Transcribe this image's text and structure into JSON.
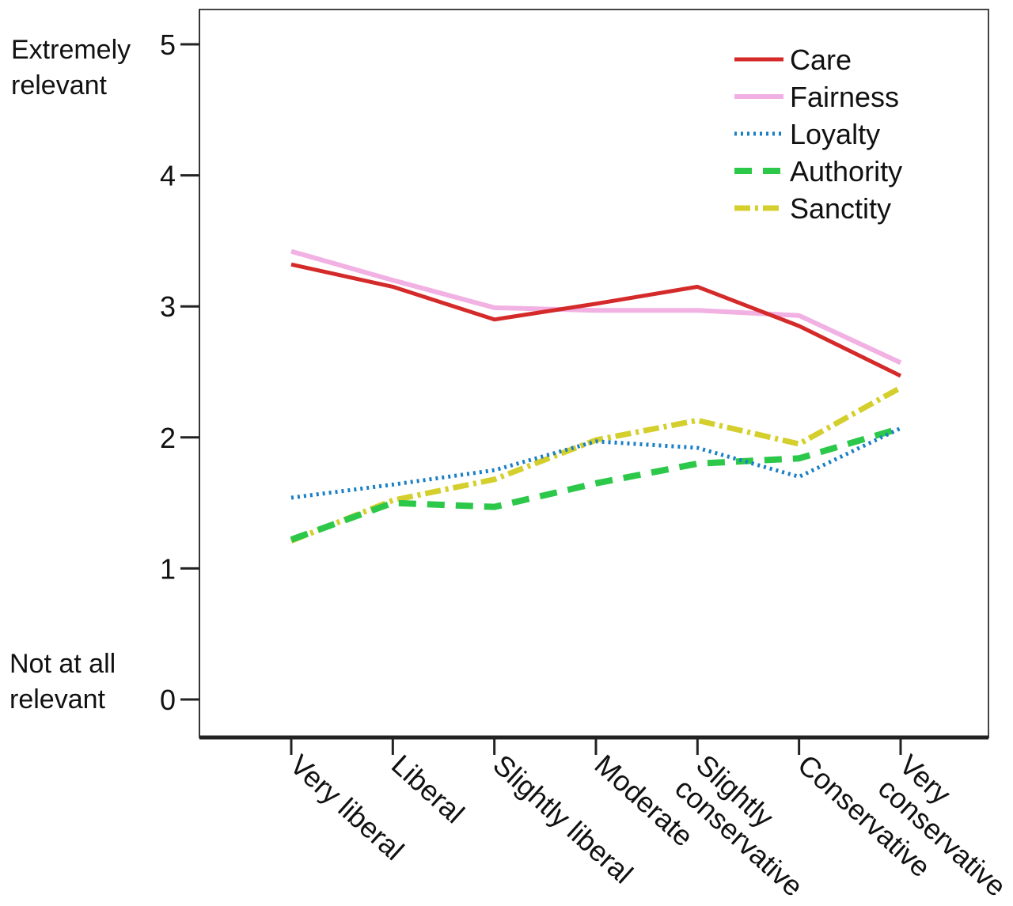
{
  "chart_data": {
    "type": "line",
    "title": "",
    "xlabel": "",
    "ylabel": "",
    "ylim": [
      0,
      5
    ],
    "yticks": [
      "0",
      "1",
      "2",
      "3",
      "4",
      "5"
    ],
    "y_top_label": [
      "Extremely",
      "relevant"
    ],
    "y_bottom_label": [
      "Not at all",
      "relevant"
    ],
    "categories": [
      [
        "Very liberal"
      ],
      [
        "Liberal"
      ],
      [
        "Slightly liberal"
      ],
      [
        "Moderate"
      ],
      [
        "Slightly",
        "conservative"
      ],
      [
        "Conservative"
      ],
      [
        "Very",
        "conservative"
      ]
    ],
    "legend_position": "top-right",
    "grid": false,
    "series": [
      {
        "name": "Care",
        "color": "#d42a2a",
        "style": "solid",
        "values": [
          3.32,
          3.15,
          2.9,
          3.02,
          3.15,
          2.85,
          2.47
        ]
      },
      {
        "name": "Fairness",
        "color": "#f0a8e0",
        "style": "solid-light",
        "values": [
          3.42,
          3.2,
          2.99,
          2.97,
          2.97,
          2.93,
          2.57
        ]
      },
      {
        "name": "Loyalty",
        "color": "#1a7fc4",
        "style": "dotted",
        "values": [
          1.54,
          1.64,
          1.75,
          1.97,
          1.92,
          1.7,
          2.07
        ]
      },
      {
        "name": "Authority",
        "color": "#2cc84a",
        "style": "dashed",
        "values": [
          1.22,
          1.5,
          1.47,
          1.65,
          1.8,
          1.84,
          2.07
        ]
      },
      {
        "name": "Sanctity",
        "color": "#d4cf2c",
        "style": "dashdot",
        "values": [
          1.21,
          1.52,
          1.68,
          1.98,
          2.13,
          1.95,
          2.38
        ]
      }
    ]
  }
}
